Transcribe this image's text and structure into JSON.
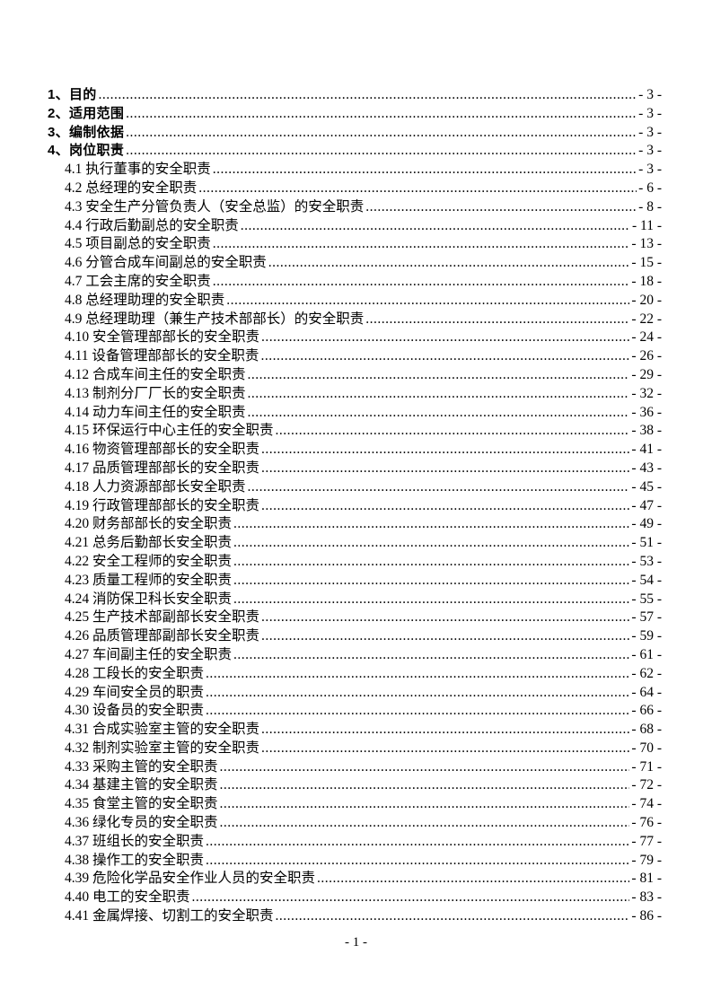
{
  "page": {
    "footer": "- 1 -"
  },
  "toc": {
    "entries": [
      {
        "level": 1,
        "label": "1、目的",
        "page": "- 3 -"
      },
      {
        "level": 1,
        "label": "2、适用范围",
        "page": "- 3 -"
      },
      {
        "level": 1,
        "label": "3、编制依据",
        "page": "- 3 -"
      },
      {
        "level": 1,
        "label": "4、岗位职责",
        "page": "- 3 -"
      },
      {
        "level": 2,
        "label": "4.1 执行董事的安全职责",
        "page": "- 3 -"
      },
      {
        "level": 2,
        "label": "4.2 总经理的安全职责",
        "page": "- 6 -"
      },
      {
        "level": 2,
        "label": "4.3 安全生产分管负责人（安全总监）的安全职责",
        "page": "- 8 -"
      },
      {
        "level": 2,
        "label": "4.4 行政后勤副总的安全职责",
        "page": "- 11 -"
      },
      {
        "level": 2,
        "label": "4.5 项目副总的安全职责",
        "page": "- 13 -"
      },
      {
        "level": 2,
        "label": "4.6 分管合成车间副总的安全职责",
        "page": "- 15 -"
      },
      {
        "level": 2,
        "label": "4.7 工会主席的安全职责",
        "page": "- 18 -"
      },
      {
        "level": 2,
        "label": "4.8 总经理助理的安全职责",
        "page": "- 20 -"
      },
      {
        "level": 2,
        "label": "4.9 总经理助理（兼生产技术部部长）的安全职责",
        "page": "- 22 -"
      },
      {
        "level": 2,
        "label": "4.10 安全管理部部长的安全职责",
        "page": "- 24 -"
      },
      {
        "level": 2,
        "label": "4.11 设备管理部部长的安全职责",
        "page": "- 26 -"
      },
      {
        "level": 2,
        "label": "4.12 合成车间主任的安全职责",
        "page": "- 29 -"
      },
      {
        "level": 2,
        "label": "4.13 制剂分厂厂长的安全职责",
        "page": "- 32 -"
      },
      {
        "level": 2,
        "label": "4.14 动力车间主任的安全职责",
        "page": "- 36 -"
      },
      {
        "level": 2,
        "label": "4.15 环保运行中心主任的安全职责",
        "page": "- 38 -"
      },
      {
        "level": 2,
        "label": "4.16 物资管理部部长的安全职责",
        "page": "- 41 -"
      },
      {
        "level": 2,
        "label": "4.17 品质管理部部长的安全职责",
        "page": "- 43 -"
      },
      {
        "level": 2,
        "label": "4.18 人力资源部部长安全职责",
        "page": "- 45 -"
      },
      {
        "level": 2,
        "label": "4.19 行政管理部部长的安全职责",
        "page": "- 47 -"
      },
      {
        "level": 2,
        "label": "4.20 财务部部长的安全职责",
        "page": "- 49 -"
      },
      {
        "level": 2,
        "label": "4.21 总务后勤部长安全职责",
        "page": "- 51 -"
      },
      {
        "level": 2,
        "label": "4.22 安全工程师的安全职责",
        "page": "- 53 -"
      },
      {
        "level": 2,
        "label": "4.23 质量工程师的安全职责",
        "page": "- 54 -"
      },
      {
        "level": 2,
        "label": "4.24 消防保卫科长安全职责",
        "page": "- 55 -"
      },
      {
        "level": 2,
        "label": "4.25 生产技术部副部长安全职责",
        "page": "- 57 -"
      },
      {
        "level": 2,
        "label": "4.26 品质管理部副部长安全职责",
        "page": "- 59 -"
      },
      {
        "level": 2,
        "label": "4.27 车间副主任的安全职责",
        "page": "- 61 -"
      },
      {
        "level": 2,
        "label": "4.28 工段长的安全职责",
        "page": "- 62 -"
      },
      {
        "level": 2,
        "label": "4.29 车间安全员的职责",
        "page": "- 64 -"
      },
      {
        "level": 2,
        "label": "4.30 设备员的安全职责",
        "page": "- 66 -"
      },
      {
        "level": 2,
        "label": "4.31 合成实验室主管的安全职责",
        "page": "- 68 -"
      },
      {
        "level": 2,
        "label": "4.32 制剂实验室主管的安全职责",
        "page": "- 70 -"
      },
      {
        "level": 2,
        "label": "4.33 采购主管的安全职责",
        "page": "- 71 -"
      },
      {
        "level": 2,
        "label": "4.34 基建主管的安全职责",
        "page": "- 72 -"
      },
      {
        "level": 2,
        "label": "4.35 食堂主管的安全职责",
        "page": "- 74 -"
      },
      {
        "level": 2,
        "label": "4.36 绿化专员的安全职责",
        "page": "- 76 -"
      },
      {
        "level": 2,
        "label": "4.37 班组长的安全职责",
        "page": "- 77 -"
      },
      {
        "level": 2,
        "label": "4.38 操作工的安全职责",
        "page": "- 79 -"
      },
      {
        "level": 2,
        "label": "4.39 危险化学品安全作业人员的安全职责",
        "page": "- 81 -"
      },
      {
        "level": 2,
        "label": "4.40 电工的安全职责",
        "page": "- 83 -"
      },
      {
        "level": 2,
        "label": "4.41 金属焊接、切割工的安全职责",
        "page": "- 86 -"
      }
    ]
  }
}
